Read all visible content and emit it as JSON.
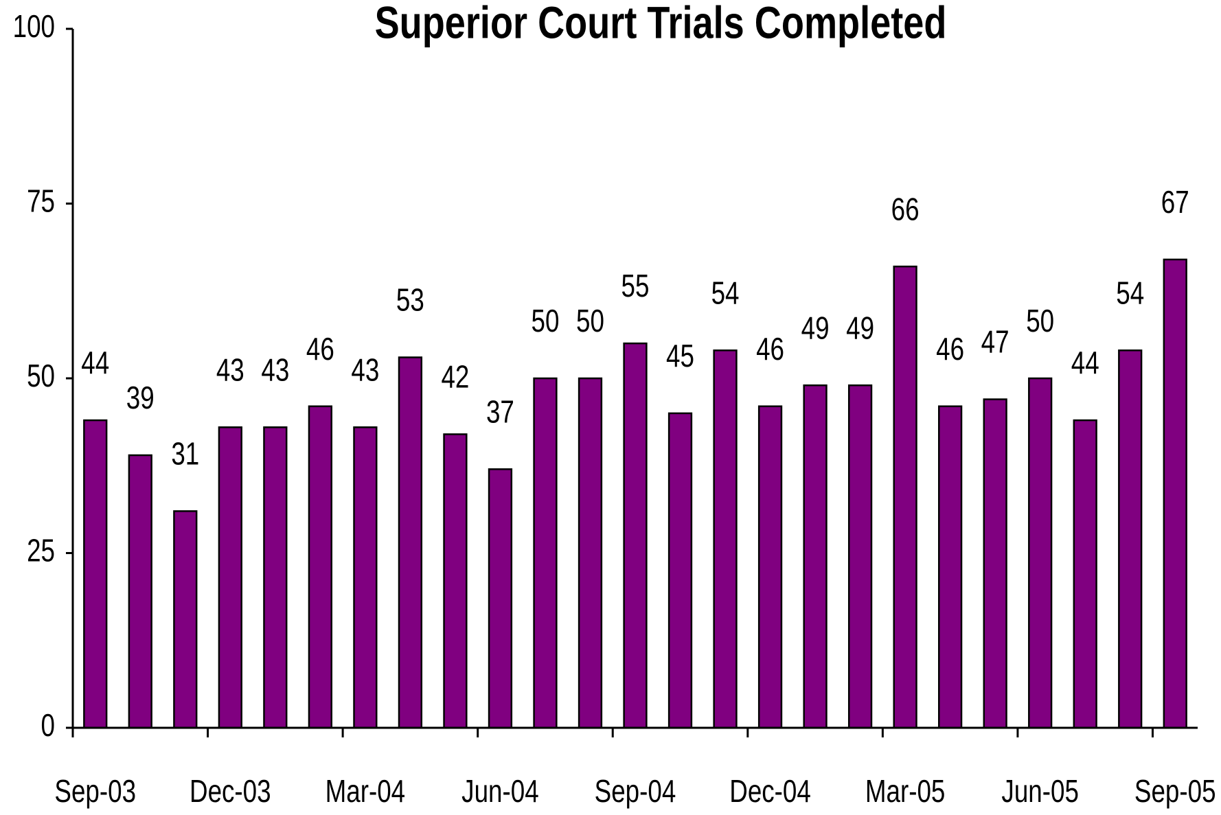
{
  "chart_data": {
    "type": "bar",
    "title": "Superior Court Trials Completed",
    "categories": [
      "Sep-03",
      null,
      null,
      "Dec-03",
      null,
      null,
      "Mar-04",
      null,
      null,
      "Jun-04",
      null,
      null,
      "Sep-04",
      null,
      null,
      "Dec-04",
      null,
      null,
      "Mar-05",
      null,
      null,
      "Jun-05",
      null,
      null,
      "Sep-05"
    ],
    "values": [
      44,
      39,
      31,
      43,
      43,
      46,
      43,
      53,
      42,
      37,
      50,
      50,
      55,
      45,
      54,
      46,
      49,
      49,
      66,
      46,
      47,
      50,
      44,
      54,
      67
    ],
    "color": "#800080",
    "ylim": [
      0,
      100
    ],
    "yticks": [
      0,
      25,
      50,
      75,
      100
    ],
    "grid": false
  }
}
